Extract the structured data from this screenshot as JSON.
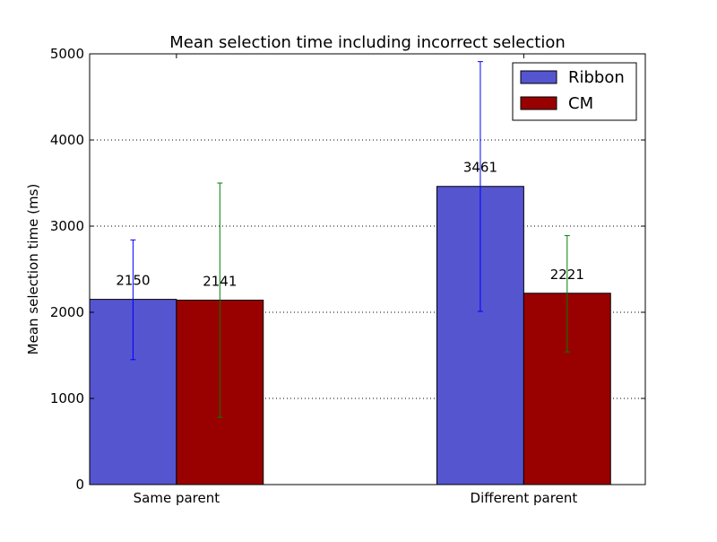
{
  "chart_data": {
    "type": "bar",
    "title": "Mean selection time including incorrect selection",
    "ylabel": "Mean selection time (ms)",
    "xlabel": "",
    "categories": [
      "Same parent",
      "Different parent"
    ],
    "ylim": [
      0,
      5000
    ],
    "yticks": [
      0,
      1000,
      2000,
      3000,
      4000,
      5000
    ],
    "grid": "horizontal-dotted",
    "legend_position": "top-right",
    "series": [
      {
        "name": "Ribbon",
        "color": "#5555d0",
        "error_color": "#0000ff",
        "values": [
          2150,
          3461
        ],
        "error_low": [
          1450,
          2010
        ],
        "error_high": [
          2840,
          4910
        ],
        "labels": [
          "2150",
          "3461"
        ]
      },
      {
        "name": "CM",
        "color": "#990000",
        "error_color": "#008000",
        "values": [
          2141,
          2221
        ],
        "error_low": [
          780,
          1540
        ],
        "error_high": [
          3500,
          2890
        ],
        "labels": [
          "2141",
          "2221"
        ]
      }
    ]
  }
}
